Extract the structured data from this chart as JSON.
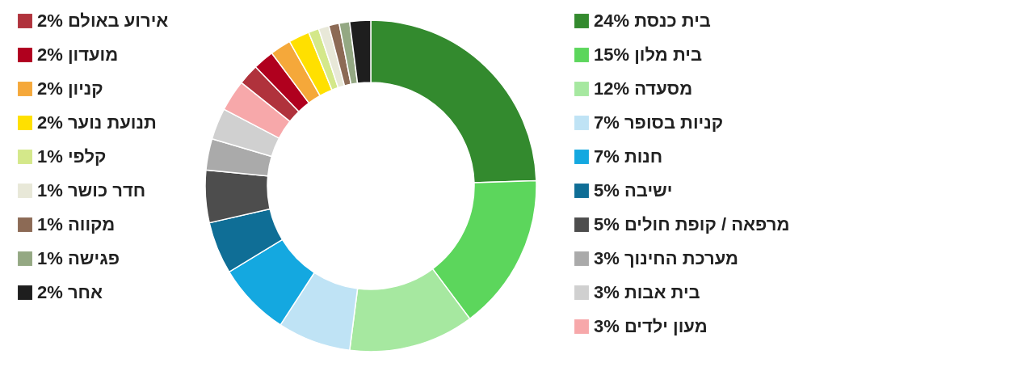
{
  "chart_data": {
    "type": "donut",
    "legend": "right",
    "categories": [
      "בית כנסת",
      "בית מלון",
      "מסעדה",
      "קניות בסופר",
      "חנות",
      "ישיבה",
      "מרפאה / קופת חולים",
      "מערכת החינוך",
      "בית אבות",
      "מעון ילדים",
      "אירוע באולם",
      "מועדון",
      "קניון",
      "תנועת נוער",
      "קלפי",
      "חדר כושר",
      "מקווה",
      "פגישה",
      "אחר"
    ],
    "values": [
      24,
      15,
      12,
      7,
      7,
      5,
      5,
      3,
      3,
      3,
      2,
      2,
      2,
      2,
      1,
      1,
      1,
      1,
      2
    ],
    "value_labels": [
      "24%",
      "15%",
      "12%",
      "7%",
      "7%",
      "5%",
      "5%",
      "3%",
      "3%",
      "3%",
      "2%",
      "2%",
      "2%",
      "2%",
      "1%",
      "1%",
      "1%",
      "1%",
      "2%"
    ],
    "colors": [
      "#338a2e",
      "#5cd65c",
      "#a6e8a0",
      "#bfe3f5",
      "#14a8e0",
      "#0f6e96",
      "#4d4d4d",
      "#aaaaaa",
      "#d0d0d0",
      "#f7a8aa",
      "#b0323c",
      "#b0001e",
      "#f5a83a",
      "#ffe000",
      "#d4e88a",
      "#e8e8d8",
      "#8c6a55",
      "#94a883",
      "#1e1e1e"
    ]
  }
}
